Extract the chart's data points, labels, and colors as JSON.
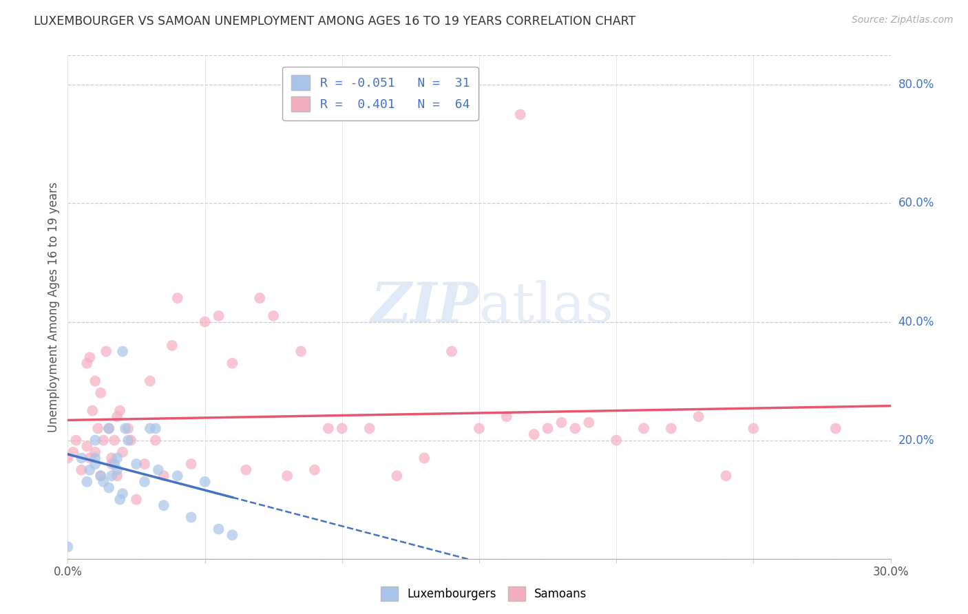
{
  "title": "LUXEMBOURGER VS SAMOAN UNEMPLOYMENT AMONG AGES 16 TO 19 YEARS CORRELATION CHART",
  "source": "Source: ZipAtlas.com",
  "ylabel": "Unemployment Among Ages 16 to 19 years",
  "xlim": [
    0.0,
    0.3
  ],
  "ylim": [
    0.0,
    0.85
  ],
  "watermark_zip": "ZIP",
  "watermark_atlas": "atlas",
  "legend_R_lux": "-0.051",
  "legend_N_lux": "31",
  "legend_R_sam": "0.401",
  "legend_N_sam": "64",
  "lux_color": "#a8c4e8",
  "sam_color": "#f5aec0",
  "lux_line_color": "#4472c4",
  "sam_line_color": "#e8556e",
  "lux_scatter_x": [
    0.0,
    0.005,
    0.007,
    0.008,
    0.01,
    0.01,
    0.01,
    0.012,
    0.013,
    0.015,
    0.015,
    0.016,
    0.017,
    0.018,
    0.018,
    0.019,
    0.02,
    0.02,
    0.021,
    0.022,
    0.025,
    0.028,
    0.03,
    0.032,
    0.033,
    0.035,
    0.04,
    0.045,
    0.05,
    0.055,
    0.06
  ],
  "lux_scatter_y": [
    0.02,
    0.17,
    0.13,
    0.15,
    0.2,
    0.17,
    0.16,
    0.14,
    0.13,
    0.22,
    0.12,
    0.14,
    0.16,
    0.17,
    0.15,
    0.1,
    0.35,
    0.11,
    0.22,
    0.2,
    0.16,
    0.13,
    0.22,
    0.22,
    0.15,
    0.09,
    0.14,
    0.07,
    0.13,
    0.05,
    0.04
  ],
  "sam_scatter_x": [
    0.0,
    0.002,
    0.003,
    0.005,
    0.007,
    0.007,
    0.008,
    0.008,
    0.009,
    0.01,
    0.01,
    0.011,
    0.012,
    0.012,
    0.013,
    0.014,
    0.015,
    0.016,
    0.016,
    0.017,
    0.018,
    0.018,
    0.019,
    0.02,
    0.022,
    0.023,
    0.025,
    0.028,
    0.03,
    0.032,
    0.035,
    0.038,
    0.04,
    0.045,
    0.05,
    0.055,
    0.06,
    0.065,
    0.07,
    0.075,
    0.08,
    0.085,
    0.09,
    0.095,
    0.1,
    0.11,
    0.12,
    0.13,
    0.14,
    0.15,
    0.16,
    0.165,
    0.17,
    0.175,
    0.18,
    0.185,
    0.19,
    0.2,
    0.21,
    0.22,
    0.23,
    0.24,
    0.25,
    0.28
  ],
  "sam_scatter_y": [
    0.17,
    0.18,
    0.2,
    0.15,
    0.19,
    0.33,
    0.17,
    0.34,
    0.25,
    0.18,
    0.3,
    0.22,
    0.14,
    0.28,
    0.2,
    0.35,
    0.22,
    0.17,
    0.16,
    0.2,
    0.14,
    0.24,
    0.25,
    0.18,
    0.22,
    0.2,
    0.1,
    0.16,
    0.3,
    0.2,
    0.14,
    0.36,
    0.44,
    0.16,
    0.4,
    0.41,
    0.33,
    0.15,
    0.44,
    0.41,
    0.14,
    0.35,
    0.15,
    0.22,
    0.22,
    0.22,
    0.14,
    0.17,
    0.35,
    0.22,
    0.24,
    0.75,
    0.21,
    0.22,
    0.23,
    0.22,
    0.23,
    0.2,
    0.22,
    0.22,
    0.24,
    0.14,
    0.22,
    0.22
  ]
}
